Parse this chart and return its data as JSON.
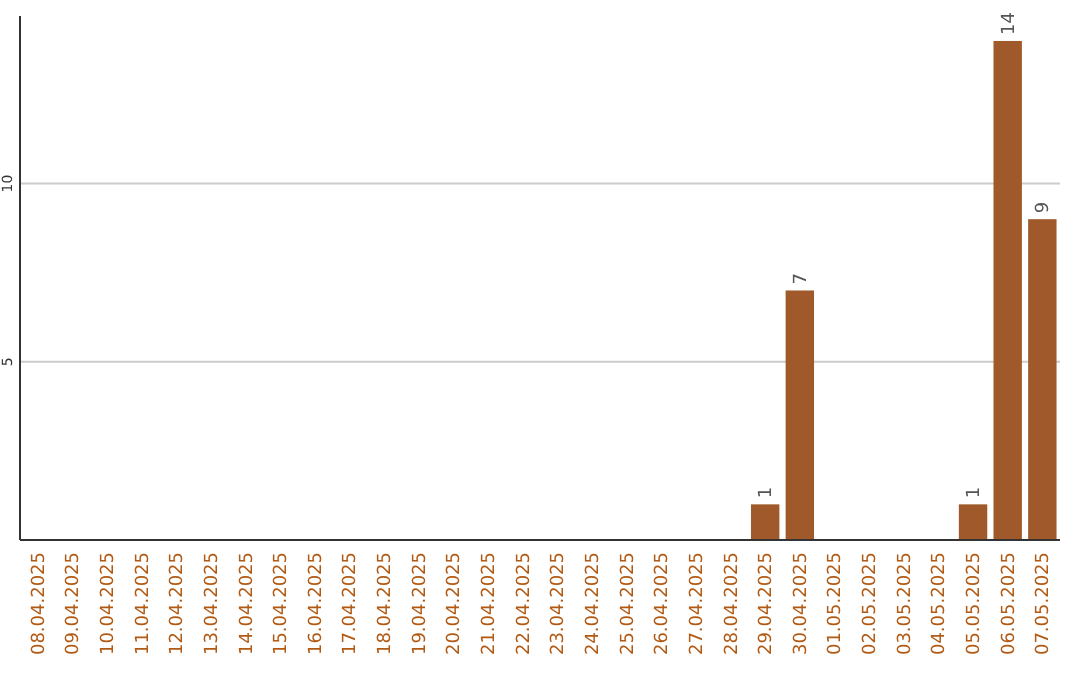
{
  "chart_data": {
    "type": "bar",
    "categories": [
      "08.04.2025",
      "09.04.2025",
      "10.04.2025",
      "11.04.2025",
      "12.04.2025",
      "13.04.2025",
      "14.04.2025",
      "15.04.2025",
      "16.04.2025",
      "17.04.2025",
      "18.04.2025",
      "19.04.2025",
      "20.04.2025",
      "21.04.2025",
      "22.04.2025",
      "23.04.2025",
      "24.04.2025",
      "25.04.2025",
      "26.04.2025",
      "27.04.2025",
      "28.04.2025",
      "29.04.2025",
      "30.04.2025",
      "01.05.2025",
      "02.05.2025",
      "03.05.2025",
      "04.05.2025",
      "05.05.2025",
      "06.05.2025",
      "07.05.2025"
    ],
    "values": [
      0,
      0,
      0,
      0,
      0,
      0,
      0,
      0,
      0,
      0,
      0,
      0,
      0,
      0,
      0,
      0,
      0,
      0,
      0,
      0,
      0,
      1,
      7,
      0,
      0,
      0,
      0,
      1,
      14,
      9
    ],
    "value_labels": [
      null,
      null,
      null,
      null,
      null,
      null,
      null,
      null,
      null,
      null,
      null,
      null,
      null,
      null,
      null,
      null,
      null,
      null,
      null,
      null,
      null,
      "1",
      "7",
      null,
      null,
      null,
      null,
      "1",
      "14",
      "9"
    ],
    "color": "#a0592a",
    "ylim": [
      0,
      14.7
    ],
    "yticks": [
      5,
      10
    ],
    "grid": "y"
  }
}
